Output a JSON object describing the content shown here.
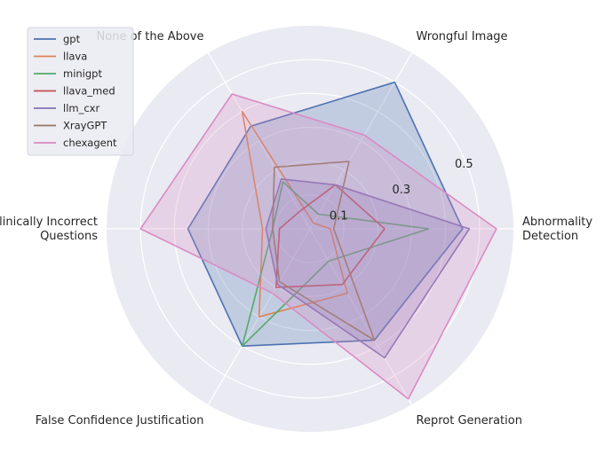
{
  "chart_data": {
    "type": "radar",
    "axes": [
      [
        "Abnormality",
        "Detection"
      ],
      [
        "Wrongful Image"
      ],
      [
        "None of the Above"
      ],
      [
        "Clinically Incorrect",
        "Questions"
      ],
      [
        "False Confidence Justification"
      ],
      [
        "Reprot Generation"
      ]
    ],
    "r_ticks": [
      "0.1",
      "0.3",
      "0.5"
    ],
    "r_tick_values": [
      0.1,
      0.3,
      0.5
    ],
    "r_max": 0.6,
    "grid": true,
    "legend_position": "top-left",
    "series": [
      {
        "name": "gpt",
        "color": "#4c72b0",
        "fill": true,
        "values": [
          0.45,
          0.5,
          0.35,
          0.36,
          0.4,
          0.38
        ]
      },
      {
        "name": "llava",
        "color": "#dd8452",
        "fill": false,
        "values": [
          0.06,
          0.02,
          0.4,
          0.14,
          0.3,
          0.22
        ]
      },
      {
        "name": "minigpt",
        "color": "#55a868",
        "fill": false,
        "values": [
          0.35,
          0.05,
          0.16,
          0.11,
          0.4,
          0.11
        ]
      },
      {
        "name": "llava_med",
        "color": "#c44e52",
        "fill": false,
        "values": [
          0.22,
          0.15,
          0.06,
          0.09,
          0.2,
          0.19
        ]
      },
      {
        "name": "llm_cxr",
        "color": "#8172b3",
        "fill": true,
        "values": [
          0.47,
          0.15,
          0.17,
          0.13,
          0.19,
          0.44
        ]
      },
      {
        "name": "XrayGPT",
        "color": "#937860",
        "fill": false,
        "values": [
          0.07,
          0.23,
          0.21,
          0.11,
          0.18,
          0.38
        ]
      },
      {
        "name": "chexagent",
        "color": "#da8bc3",
        "fill": true,
        "values": [
          0.55,
          0.32,
          0.46,
          0.5,
          0.22,
          0.58
        ]
      }
    ]
  }
}
